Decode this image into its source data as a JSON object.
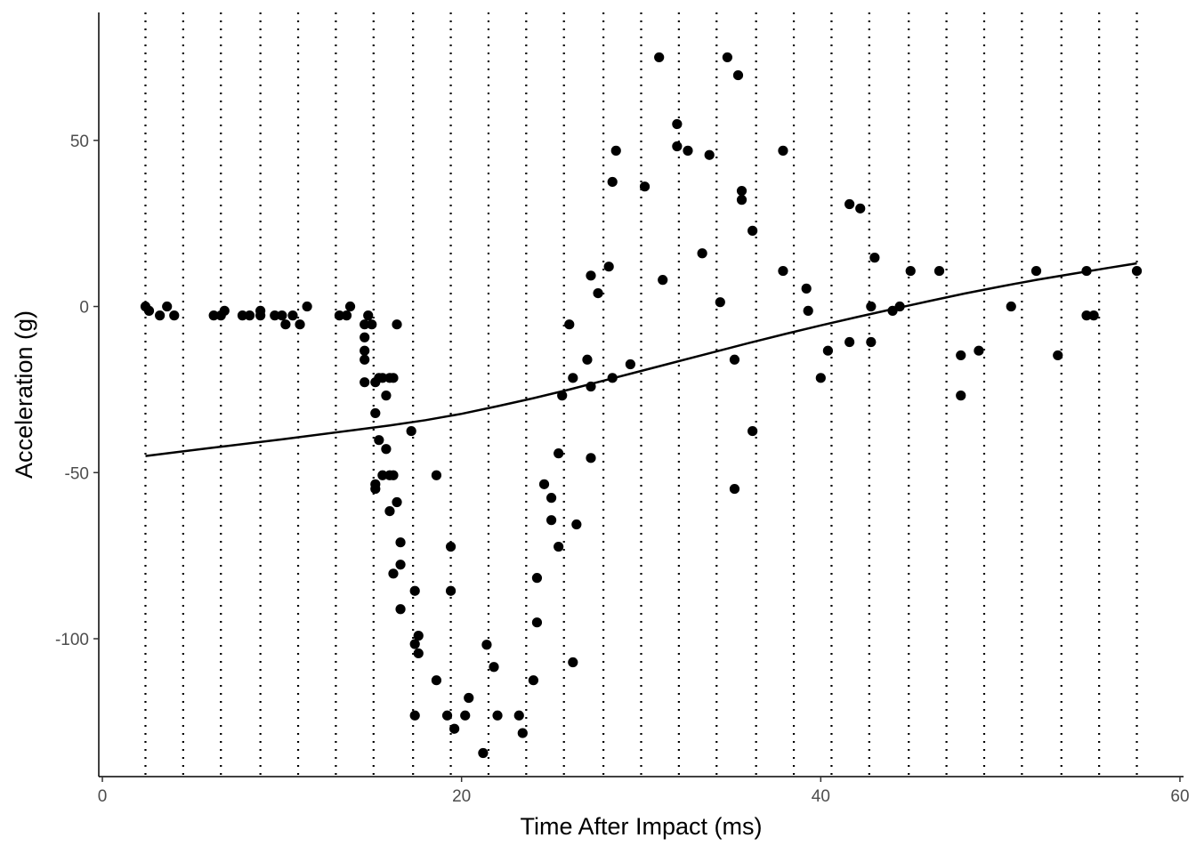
{
  "chart_data": {
    "type": "scatter",
    "title": "",
    "xlabel": "Time After Impact (ms)",
    "ylabel": "Acceleration (g)",
    "xlim": [
      -0.2,
      60.2
    ],
    "ylim": [
      -141.5,
      88.5
    ],
    "x_ticks": [
      0,
      20,
      40,
      60
    ],
    "x_tick_labels": [
      "0",
      "20",
      "40",
      "60"
    ],
    "y_ticks": [
      -100,
      -50,
      0,
      50
    ],
    "y_tick_labels": [
      "-100",
      "-50",
      "0",
      "50"
    ],
    "grid": false,
    "legend": "none",
    "knot_lines": [
      2.4,
      4.5,
      6.6,
      8.8,
      10.9,
      13.0,
      15.1,
      17.3,
      19.4,
      21.5,
      23.6,
      25.7,
      27.9,
      30.0,
      32.1,
      34.2,
      36.4,
      38.5,
      40.6,
      42.7,
      44.9,
      47.0,
      49.1,
      51.2,
      53.4,
      55.5,
      57.6
    ],
    "points": [
      [
        2.4,
        0.0
      ],
      [
        2.6,
        -1.3
      ],
      [
        3.2,
        -2.7
      ],
      [
        3.6,
        0.0
      ],
      [
        4.0,
        -2.7
      ],
      [
        6.2,
        -2.7
      ],
      [
        6.6,
        -2.7
      ],
      [
        6.8,
        -1.3
      ],
      [
        7.8,
        -2.7
      ],
      [
        8.2,
        -2.7
      ],
      [
        8.8,
        -1.3
      ],
      [
        8.8,
        -2.7
      ],
      [
        9.6,
        -2.7
      ],
      [
        10.0,
        -2.7
      ],
      [
        10.2,
        -5.4
      ],
      [
        10.6,
        -2.7
      ],
      [
        11.0,
        -5.4
      ],
      [
        11.4,
        0.0
      ],
      [
        13.2,
        -2.7
      ],
      [
        13.6,
        -2.7
      ],
      [
        13.8,
        0.0
      ],
      [
        14.6,
        -5.4
      ],
      [
        14.6,
        -9.3
      ],
      [
        14.6,
        -13.3
      ],
      [
        14.6,
        -16.0
      ],
      [
        14.6,
        -22.8
      ],
      [
        14.8,
        -2.7
      ],
      [
        15.0,
        -5.4
      ],
      [
        15.2,
        -22.8
      ],
      [
        15.2,
        -32.1
      ],
      [
        15.2,
        -53.5
      ],
      [
        15.2,
        -54.9
      ],
      [
        15.4,
        -21.5
      ],
      [
        15.4,
        -40.2
      ],
      [
        15.6,
        -21.5
      ],
      [
        15.6,
        -50.8
      ],
      [
        15.8,
        -26.8
      ],
      [
        15.8,
        -42.9
      ],
      [
        16.0,
        -21.5
      ],
      [
        16.0,
        -50.8
      ],
      [
        16.0,
        -61.6
      ],
      [
        16.2,
        -50.8
      ],
      [
        16.2,
        -21.5
      ],
      [
        16.2,
        -80.4
      ],
      [
        16.4,
        -5.4
      ],
      [
        16.4,
        -58.9
      ],
      [
        16.6,
        -71.0
      ],
      [
        16.6,
        -77.7
      ],
      [
        16.6,
        -91.1
      ],
      [
        17.2,
        -37.5
      ],
      [
        17.4,
        -85.6
      ],
      [
        17.4,
        -101.6
      ],
      [
        17.4,
        -123.1
      ],
      [
        17.6,
        -99.1
      ],
      [
        17.6,
        -104.4
      ],
      [
        18.6,
        -50.8
      ],
      [
        18.6,
        -112.5
      ],
      [
        19.2,
        -123.1
      ],
      [
        19.4,
        -72.3
      ],
      [
        19.4,
        -85.6
      ],
      [
        19.6,
        -127.1
      ],
      [
        20.2,
        -123.1
      ],
      [
        20.4,
        -117.8
      ],
      [
        21.2,
        -134.4
      ],
      [
        21.4,
        -101.8
      ],
      [
        21.8,
        -108.5
      ],
      [
        22.0,
        -123.1
      ],
      [
        23.2,
        -123.1
      ],
      [
        23.4,
        -128.4
      ],
      [
        24.0,
        -112.5
      ],
      [
        24.2,
        -81.7
      ],
      [
        24.2,
        -95.1
      ],
      [
        24.6,
        -53.5
      ],
      [
        25.0,
        -57.6
      ],
      [
        25.0,
        -64.3
      ],
      [
        25.4,
        -44.2
      ],
      [
        25.4,
        -72.3
      ],
      [
        25.6,
        -26.8
      ],
      [
        26.0,
        -5.4
      ],
      [
        26.2,
        -21.5
      ],
      [
        26.2,
        -107.1
      ],
      [
        26.4,
        -65.6
      ],
      [
        27.0,
        -16.0
      ],
      [
        27.2,
        -24.1
      ],
      [
        27.2,
        -45.6
      ],
      [
        27.2,
        9.3
      ],
      [
        27.6,
        4.0
      ],
      [
        28.2,
        12.0
      ],
      [
        28.4,
        -21.5
      ],
      [
        28.4,
        37.5
      ],
      [
        28.6,
        46.9
      ],
      [
        29.4,
        -17.4
      ],
      [
        30.2,
        36.1
      ],
      [
        31.0,
        75.0
      ],
      [
        31.2,
        8.0
      ],
      [
        32.0,
        54.9
      ],
      [
        32.0,
        48.2
      ],
      [
        32.6,
        46.9
      ],
      [
        33.4,
        16.0
      ],
      [
        33.8,
        45.6
      ],
      [
        34.4,
        1.3
      ],
      [
        34.8,
        75.0
      ],
      [
        35.2,
        -16.0
      ],
      [
        35.2,
        -54.9
      ],
      [
        35.4,
        69.6
      ],
      [
        35.6,
        34.8
      ],
      [
        35.6,
        32.1
      ],
      [
        36.2,
        22.8
      ],
      [
        36.2,
        -37.5
      ],
      [
        37.9,
        10.7
      ],
      [
        37.9,
        46.9
      ],
      [
        39.2,
        5.4
      ],
      [
        39.3,
        -1.3
      ],
      [
        40.0,
        -21.5
      ],
      [
        40.4,
        -13.3
      ],
      [
        41.6,
        -10.7
      ],
      [
        41.6,
        30.8
      ],
      [
        42.2,
        29.5
      ],
      [
        42.8,
        0.0
      ],
      [
        42.8,
        -10.7
      ],
      [
        43.0,
        14.7
      ],
      [
        44.0,
        -1.3
      ],
      [
        44.4,
        0.0
      ],
      [
        45.0,
        10.7
      ],
      [
        46.6,
        10.7
      ],
      [
        47.8,
        -14.7
      ],
      [
        47.8,
        -26.8
      ],
      [
        48.8,
        -13.3
      ],
      [
        50.6,
        0.0
      ],
      [
        52.0,
        10.7
      ],
      [
        53.2,
        -14.7
      ],
      [
        54.8,
        10.7
      ],
      [
        54.8,
        -2.7
      ],
      [
        55.2,
        -2.7
      ],
      [
        57.6,
        10.7
      ]
    ],
    "smooth_line": [
      [
        2.4,
        -45.0
      ],
      [
        6.0,
        -42.6
      ],
      [
        10.0,
        -40.0
      ],
      [
        14.0,
        -37.2
      ],
      [
        16.0,
        -35.8
      ],
      [
        18.0,
        -34.2
      ],
      [
        20.0,
        -32.3
      ],
      [
        22.0,
        -30.0
      ],
      [
        24.0,
        -27.6
      ],
      [
        26.0,
        -25.0
      ],
      [
        28.0,
        -22.2
      ],
      [
        30.0,
        -19.4
      ],
      [
        32.0,
        -16.6
      ],
      [
        34.0,
        -13.8
      ],
      [
        36.0,
        -11.0
      ],
      [
        38.0,
        -8.3
      ],
      [
        40.0,
        -5.7
      ],
      [
        42.0,
        -3.2
      ],
      [
        44.0,
        -0.8
      ],
      [
        46.0,
        1.6
      ],
      [
        48.0,
        3.9
      ],
      [
        50.0,
        6.0
      ],
      [
        52.0,
        8.0
      ],
      [
        54.0,
        9.8
      ],
      [
        56.0,
        11.6
      ],
      [
        57.6,
        13.0
      ]
    ]
  }
}
